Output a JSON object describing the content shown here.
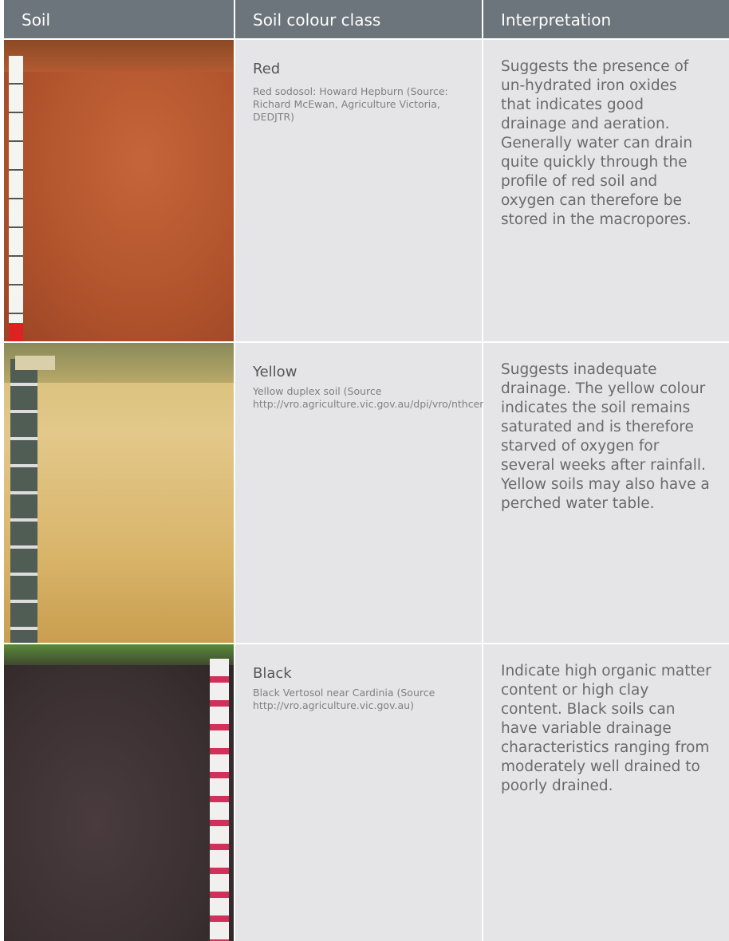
{
  "table": {
    "header": [
      "Soil",
      "Soil colour class",
      "Interpretation"
    ],
    "rows": [
      {
        "class": "Red",
        "caption": "Red sodosol: Howard Hepburn (Source: Richard McEwan, Agriculture Victoria, DEDJTR)",
        "interpretation": "Suggests the presence of un-hydrated iron oxides that indicates good drainage and aeration. Generally water can drain quite quickly through the profile of red soil and oxygen can therefore be stored in the macropores."
      },
      {
        "class": "Yellow",
        "caption": "Yellow duplex soil (Source http://vro.agriculture.vic.gov.au/dpi/vro/nthcenregn.nsf/pages/NC_soils)",
        "interpretation": "Suggests inadequate drainage. The yellow colour indicates the soil remains saturated and is therefore starved of oxygen for several weeks after rainfall. Yellow soils may also have a perched water table."
      },
      {
        "class": "Black",
        "caption": "Black Vertosol near Cardinia (Source http://vro.agriculture.vic.gov.au)",
        "interpretation": "Indicate high organic matter content or high clay content. Black soils can have variable drainage characteristics ranging from moderately well drained to poorly drained."
      }
    ]
  }
}
